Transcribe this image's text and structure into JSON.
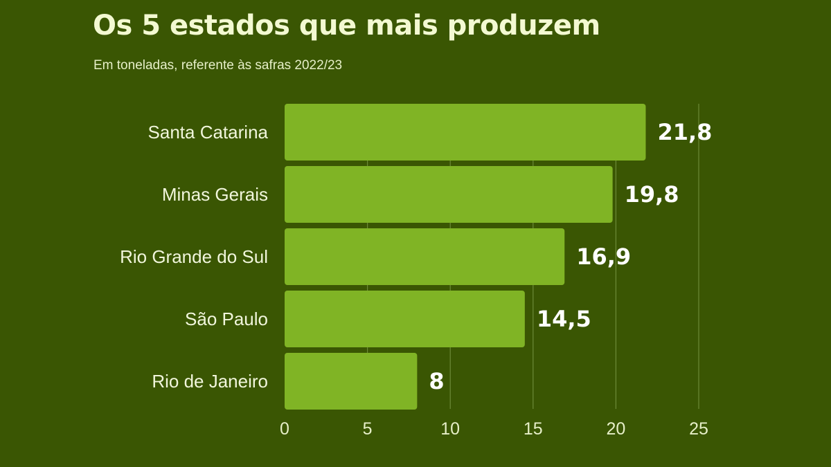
{
  "chart_data": {
    "type": "bar",
    "orientation": "horizontal",
    "title": "Os 5 estados que mais produzem",
    "subtitle": "Em toneladas, referente às safras 2022/23",
    "categories": [
      "Santa Catarina",
      "Minas Gerais",
      "Rio Grande do Sul",
      "São Paulo",
      "Rio de Janeiro"
    ],
    "values": [
      21.8,
      19.8,
      16.9,
      14.5,
      8
    ],
    "value_labels": [
      "21,8",
      "19,8",
      "16,9",
      "14,5",
      "8"
    ],
    "xlim": [
      0,
      25
    ],
    "xticks": [
      0,
      5,
      10,
      15,
      20,
      25
    ],
    "xtick_labels": [
      "0",
      "5",
      "10",
      "15",
      "20",
      "25"
    ],
    "xlabel": "",
    "ylabel": "",
    "grid": "vertical",
    "colors": {
      "background": "#3a5603",
      "bar": "#80b425",
      "grid": "#6d8a38",
      "text": "#f1f6dc"
    }
  }
}
